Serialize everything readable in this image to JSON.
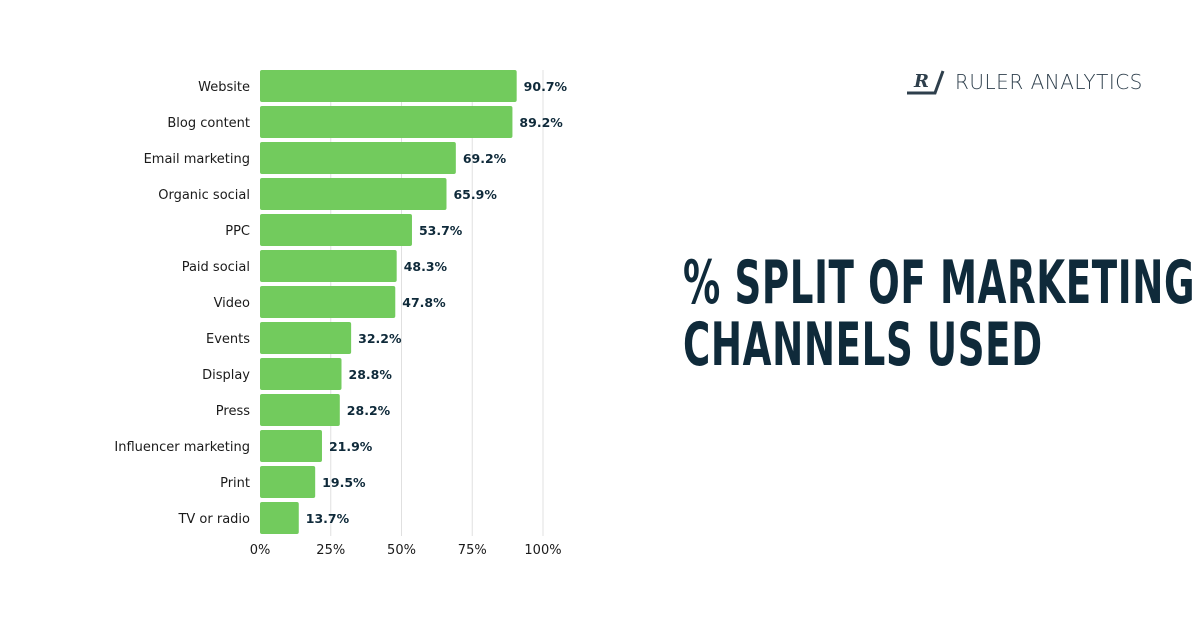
{
  "title": {
    "line1": "% SPLIT OF MARKETING",
    "line2": "CHANNELS USED"
  },
  "brand": {
    "name": "RULER ANALYTICS",
    "color": "#2e3f4c"
  },
  "colors": {
    "bar": "#72cb5d",
    "text": "#0f2a3a",
    "grid": "#e0e0e0"
  },
  "chart_data": {
    "type": "bar",
    "orientation": "horizontal",
    "categories": [
      "Website",
      "Blog content",
      "Email marketing",
      "Organic social",
      "PPC",
      "Paid social",
      "Video",
      "Events",
      "Display",
      "Press",
      "Influencer marketing",
      "Print",
      "TV or radio"
    ],
    "values": [
      90.7,
      89.2,
      69.2,
      65.9,
      53.7,
      48.3,
      47.8,
      32.2,
      28.8,
      28.2,
      21.9,
      19.5,
      13.7
    ],
    "data_labels": [
      "90.7%",
      "89.2%",
      "69.2%",
      "65.9%",
      "53.7%",
      "48.3%",
      "47.8%",
      "32.2%",
      "28.8%",
      "28.2%",
      "21.9%",
      "19.5%",
      "13.7%"
    ],
    "xlim": [
      0,
      100
    ],
    "xticks": [
      0,
      25,
      50,
      75,
      100
    ],
    "xtick_labels": [
      "0%",
      "25%",
      "50%",
      "75%",
      "100%"
    ],
    "grid": "vertical",
    "legend": "none"
  }
}
